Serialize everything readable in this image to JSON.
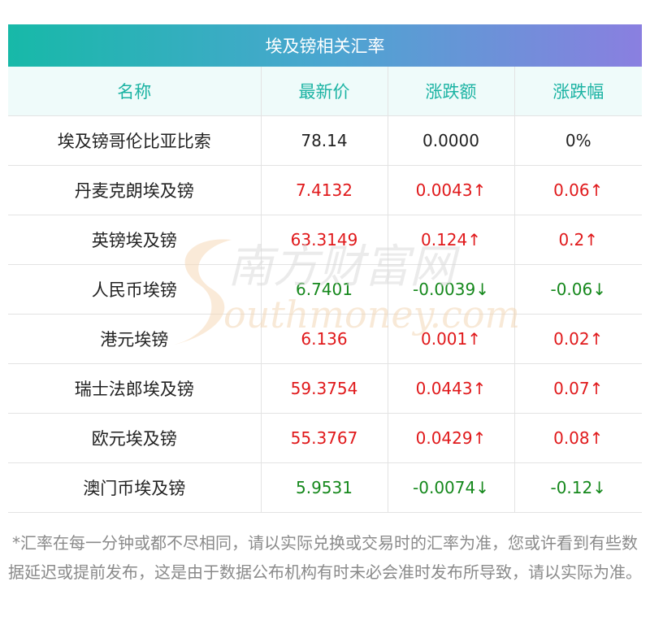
{
  "title": "埃及镑相关汇率",
  "columns": [
    "名称",
    "最新价",
    "涨跌额",
    "涨跌幅"
  ],
  "rows": [
    {
      "name": "埃及镑哥伦比亚比索",
      "price": "78.14",
      "change": "0.0000",
      "pct": "0%",
      "trend": "flat"
    },
    {
      "name": "丹麦克朗埃及镑",
      "price": "7.4132",
      "change": "0.0043↑",
      "pct": "0.06↑",
      "trend": "up"
    },
    {
      "name": "英镑埃及镑",
      "price": "63.3149",
      "change": "0.124↑",
      "pct": "0.2↑",
      "trend": "up"
    },
    {
      "name": "人民币埃镑",
      "price": "6.7401",
      "change": "-0.0039↓",
      "pct": "-0.06↓",
      "trend": "down"
    },
    {
      "name": "港元埃镑",
      "price": "6.136",
      "change": "0.001↑",
      "pct": "0.02↑",
      "trend": "up"
    },
    {
      "name": "瑞士法郎埃及镑",
      "price": "59.3754",
      "change": "0.0443↑",
      "pct": "0.07↑",
      "trend": "up"
    },
    {
      "name": "欧元埃及镑",
      "price": "55.3767",
      "change": "0.0429↑",
      "pct": "0.08↑",
      "trend": "up"
    },
    {
      "name": "澳门币埃及镑",
      "price": "5.9531",
      "change": "-0.0074↓",
      "pct": "-0.12↓",
      "trend": "down"
    }
  ],
  "watermark": {
    "cn": "南方财富网",
    "en": "outhmoney.com"
  },
  "note": "*汇率在每一分钟或都不尽相同，请以实际兑换或交易时的汇率为准，您或许看到有些数据延迟或提前发布，这是由于数据公布机构有时未必会准时发布所导致，请以实际为准。",
  "colors": {
    "up": "#e0191b",
    "down": "#15881c",
    "header_text": "#1bb3a3",
    "header_bg": "#effbfa",
    "title_gradient": [
      "#17b9a8",
      "#8a7fe0"
    ]
  }
}
